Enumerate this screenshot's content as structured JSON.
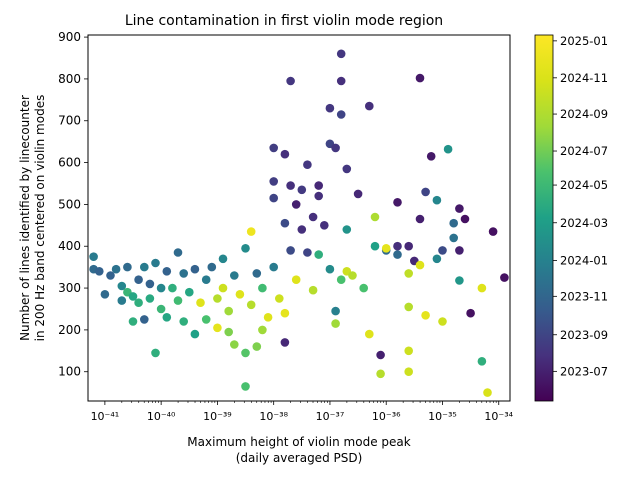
{
  "chart_data": {
    "type": "scatter",
    "title": "Line contamination in first violin mode region",
    "xlabel_lines": [
      "Maximum height of violin mode peak",
      "(daily averaged PSD)"
    ],
    "ylabel_lines": [
      "Number of lines identified by linecounter",
      "in 200 Hz band centered on violin modes"
    ],
    "x_scale": "log",
    "x_exponent_range": [
      -41.3,
      -33.8
    ],
    "x_tick_exponents": [
      -41,
      -40,
      -39,
      -38,
      -37,
      -36,
      -35,
      -34
    ],
    "x_tick_labels": [
      "10⁻⁴¹",
      "10⁻⁴⁰",
      "10⁻³⁹",
      "10⁻³⁸",
      "10⁻³⁷",
      "10⁻³⁶",
      "10⁻³⁵",
      "10⁻³⁴"
    ],
    "ylim": [
      30,
      905
    ],
    "y_ticks": [
      100,
      200,
      300,
      400,
      500,
      600,
      700,
      800,
      900
    ],
    "y_tick_labels": [
      "100",
      "200",
      "300",
      "400",
      "500",
      "600",
      "700",
      "800",
      "900"
    ],
    "grid": false,
    "colorbar": {
      "colormap": "viridis",
      "range": [
        0,
        1
      ],
      "tick_positions": [
        0.081,
        0.181,
        0.286,
        0.384,
        0.487,
        0.59,
        0.683,
        0.784,
        0.883,
        0.984
      ],
      "tick_labels": [
        "2023-07",
        "2023-09",
        "2023-11",
        "2024-01",
        "2024-03",
        "2024-05",
        "2024-07",
        "2024-09",
        "2024-11",
        "2025-01"
      ]
    },
    "points": [
      {
        "x": -41.2,
        "y": 375,
        "c": 0.36
      },
      {
        "x": -41.2,
        "y": 345,
        "c": 0.3
      },
      {
        "x": -41.1,
        "y": 340,
        "c": 0.27
      },
      {
        "x": -41.0,
        "y": 285,
        "c": 0.3
      },
      {
        "x": -40.9,
        "y": 330,
        "c": 0.27
      },
      {
        "x": -40.8,
        "y": 345,
        "c": 0.33
      },
      {
        "x": -40.7,
        "y": 270,
        "c": 0.36
      },
      {
        "x": -40.7,
        "y": 305,
        "c": 0.4
      },
      {
        "x": -40.6,
        "y": 350,
        "c": 0.3
      },
      {
        "x": -40.6,
        "y": 290,
        "c": 0.58
      },
      {
        "x": -40.5,
        "y": 280,
        "c": 0.52
      },
      {
        "x": -40.5,
        "y": 220,
        "c": 0.55
      },
      {
        "x": -40.4,
        "y": 320,
        "c": 0.27
      },
      {
        "x": -40.4,
        "y": 265,
        "c": 0.55
      },
      {
        "x": -40.3,
        "y": 350,
        "c": 0.36
      },
      {
        "x": -40.3,
        "y": 225,
        "c": 0.27
      },
      {
        "x": -40.2,
        "y": 310,
        "c": 0.27
      },
      {
        "x": -40.2,
        "y": 275,
        "c": 0.53
      },
      {
        "x": -40.1,
        "y": 145,
        "c": 0.55
      },
      {
        "x": -40.1,
        "y": 360,
        "c": 0.36
      },
      {
        "x": -40.0,
        "y": 300,
        "c": 0.4
      },
      {
        "x": -40.0,
        "y": 250,
        "c": 0.58
      },
      {
        "x": -39.9,
        "y": 340,
        "c": 0.27
      },
      {
        "x": -39.9,
        "y": 230,
        "c": 0.52
      },
      {
        "x": -39.8,
        "y": 300,
        "c": 0.55
      },
      {
        "x": -39.7,
        "y": 385,
        "c": 0.3
      },
      {
        "x": -39.7,
        "y": 270,
        "c": 0.6
      },
      {
        "x": -39.6,
        "y": 335,
        "c": 0.33
      },
      {
        "x": -39.6,
        "y": 220,
        "c": 0.55
      },
      {
        "x": -39.5,
        "y": 290,
        "c": 0.52
      },
      {
        "x": -39.4,
        "y": 345,
        "c": 0.27
      },
      {
        "x": -39.4,
        "y": 190,
        "c": 0.5
      },
      {
        "x": -39.3,
        "y": 265,
        "c": 0.9
      },
      {
        "x": -39.2,
        "y": 320,
        "c": 0.36
      },
      {
        "x": -39.2,
        "y": 225,
        "c": 0.62
      },
      {
        "x": -39.1,
        "y": 350,
        "c": 0.3
      },
      {
        "x": -39.0,
        "y": 275,
        "c": 0.8
      },
      {
        "x": -39.0,
        "y": 205,
        "c": 0.92
      },
      {
        "x": -38.9,
        "y": 370,
        "c": 0.4
      },
      {
        "x": -38.9,
        "y": 300,
        "c": 0.85
      },
      {
        "x": -38.8,
        "y": 245,
        "c": 0.75
      },
      {
        "x": -38.8,
        "y": 195,
        "c": 0.7
      },
      {
        "x": -38.7,
        "y": 330,
        "c": 0.36
      },
      {
        "x": -38.7,
        "y": 165,
        "c": 0.72
      },
      {
        "x": -38.6,
        "y": 285,
        "c": 0.9
      },
      {
        "x": -38.5,
        "y": 395,
        "c": 0.42
      },
      {
        "x": -38.5,
        "y": 65,
        "c": 0.62
      },
      {
        "x": -38.5,
        "y": 145,
        "c": 0.64
      },
      {
        "x": -38.4,
        "y": 435,
        "c": 0.95
      },
      {
        "x": -38.4,
        "y": 260,
        "c": 0.8
      },
      {
        "x": -38.3,
        "y": 335,
        "c": 0.3
      },
      {
        "x": -38.3,
        "y": 160,
        "c": 0.7
      },
      {
        "x": -38.2,
        "y": 300,
        "c": 0.6
      },
      {
        "x": -38.2,
        "y": 200,
        "c": 0.75
      },
      {
        "x": -38.1,
        "y": 230,
        "c": 0.9
      },
      {
        "x": -38.0,
        "y": 555,
        "c": 0.16
      },
      {
        "x": -38.0,
        "y": 515,
        "c": 0.18
      },
      {
        "x": -38.0,
        "y": 635,
        "c": 0.16
      },
      {
        "x": -38.0,
        "y": 350,
        "c": 0.36
      },
      {
        "x": -37.9,
        "y": 275,
        "c": 0.85
      },
      {
        "x": -37.8,
        "y": 620,
        "c": 0.12
      },
      {
        "x": -37.8,
        "y": 455,
        "c": 0.2
      },
      {
        "x": -37.8,
        "y": 170,
        "c": 0.1
      },
      {
        "x": -37.8,
        "y": 240,
        "c": 0.92
      },
      {
        "x": -37.7,
        "y": 795,
        "c": 0.14
      },
      {
        "x": -37.7,
        "y": 545,
        "c": 0.12
      },
      {
        "x": -37.7,
        "y": 390,
        "c": 0.2
      },
      {
        "x": -37.6,
        "y": 500,
        "c": 0.08
      },
      {
        "x": -37.6,
        "y": 320,
        "c": 0.9
      },
      {
        "x": -37.5,
        "y": 535,
        "c": 0.15
      },
      {
        "x": -37.5,
        "y": 440,
        "c": 0.12
      },
      {
        "x": -37.4,
        "y": 595,
        "c": 0.14
      },
      {
        "x": -37.4,
        "y": 385,
        "c": 0.18
      },
      {
        "x": -37.3,
        "y": 470,
        "c": 0.12
      },
      {
        "x": -37.3,
        "y": 295,
        "c": 0.8
      },
      {
        "x": -37.2,
        "y": 545,
        "c": 0.1
      },
      {
        "x": -37.2,
        "y": 380,
        "c": 0.55
      },
      {
        "x": -37.2,
        "y": 520,
        "c": 0.12
      },
      {
        "x": -37.1,
        "y": 450,
        "c": 0.12
      },
      {
        "x": -37.0,
        "y": 730,
        "c": 0.14
      },
      {
        "x": -37.0,
        "y": 645,
        "c": 0.18
      },
      {
        "x": -37.0,
        "y": 345,
        "c": 0.42
      },
      {
        "x": -36.9,
        "y": 635,
        "c": 0.14
      },
      {
        "x": -36.9,
        "y": 245,
        "c": 0.38
      },
      {
        "x": -36.9,
        "y": 215,
        "c": 0.75
      },
      {
        "x": -36.8,
        "y": 860,
        "c": 0.14
      },
      {
        "x": -36.8,
        "y": 795,
        "c": 0.12
      },
      {
        "x": -36.8,
        "y": 715,
        "c": 0.18
      },
      {
        "x": -36.8,
        "y": 320,
        "c": 0.62
      },
      {
        "x": -36.7,
        "y": 585,
        "c": 0.14
      },
      {
        "x": -36.7,
        "y": 440,
        "c": 0.45
      },
      {
        "x": -36.7,
        "y": 340,
        "c": 0.85
      },
      {
        "x": -36.6,
        "y": 330,
        "c": 0.8
      },
      {
        "x": -36.5,
        "y": 525,
        "c": 0.1
      },
      {
        "x": -36.4,
        "y": 300,
        "c": 0.62
      },
      {
        "x": -36.3,
        "y": 735,
        "c": 0.12
      },
      {
        "x": -36.3,
        "y": 190,
        "c": 0.9
      },
      {
        "x": -36.2,
        "y": 470,
        "c": 0.78
      },
      {
        "x": -36.2,
        "y": 400,
        "c": 0.5
      },
      {
        "x": -36.1,
        "y": 140,
        "c": 0.08
      },
      {
        "x": -36.1,
        "y": 95,
        "c": 0.8
      },
      {
        "x": -36.0,
        "y": 390,
        "c": 0.3
      },
      {
        "x": -36.0,
        "y": 395,
        "c": 0.92
      },
      {
        "x": -35.8,
        "y": 400,
        "c": 0.12
      },
      {
        "x": -35.8,
        "y": 380,
        "c": 0.3
      },
      {
        "x": -35.8,
        "y": 505,
        "c": 0.06
      },
      {
        "x": -35.6,
        "y": 400,
        "c": 0.1
      },
      {
        "x": -35.6,
        "y": 335,
        "c": 0.82
      },
      {
        "x": -35.6,
        "y": 255,
        "c": 0.8
      },
      {
        "x": -35.6,
        "y": 150,
        "c": 0.85
      },
      {
        "x": -35.6,
        "y": 100,
        "c": 0.85
      },
      {
        "x": -35.5,
        "y": 365,
        "c": 0.1
      },
      {
        "x": -35.4,
        "y": 355,
        "c": 0.9
      },
      {
        "x": -35.4,
        "y": 802,
        "c": 0.06
      },
      {
        "x": -35.4,
        "y": 465,
        "c": 0.08
      },
      {
        "x": -35.3,
        "y": 530,
        "c": 0.18
      },
      {
        "x": -35.3,
        "y": 235,
        "c": 0.92
      },
      {
        "x": -35.2,
        "y": 615,
        "c": 0.06
      },
      {
        "x": -35.1,
        "y": 510,
        "c": 0.4
      },
      {
        "x": -35.1,
        "y": 370,
        "c": 0.4
      },
      {
        "x": -35.0,
        "y": 390,
        "c": 0.2
      },
      {
        "x": -35.0,
        "y": 220,
        "c": 0.85
      },
      {
        "x": -34.9,
        "y": 632,
        "c": 0.45
      },
      {
        "x": -34.8,
        "y": 455,
        "c": 0.3
      },
      {
        "x": -34.8,
        "y": 420,
        "c": 0.33
      },
      {
        "x": -34.7,
        "y": 490,
        "c": 0.06
      },
      {
        "x": -34.7,
        "y": 390,
        "c": 0.08
      },
      {
        "x": -34.7,
        "y": 318,
        "c": 0.46
      },
      {
        "x": -34.6,
        "y": 465,
        "c": 0.04
      },
      {
        "x": -34.5,
        "y": 240,
        "c": 0.04
      },
      {
        "x": -34.3,
        "y": 300,
        "c": 0.9
      },
      {
        "x": -34.3,
        "y": 125,
        "c": 0.55
      },
      {
        "x": -34.2,
        "y": 50,
        "c": 0.88
      },
      {
        "x": -34.1,
        "y": 435,
        "c": 0.04
      },
      {
        "x": -33.9,
        "y": 325,
        "c": 0.04
      }
    ]
  }
}
